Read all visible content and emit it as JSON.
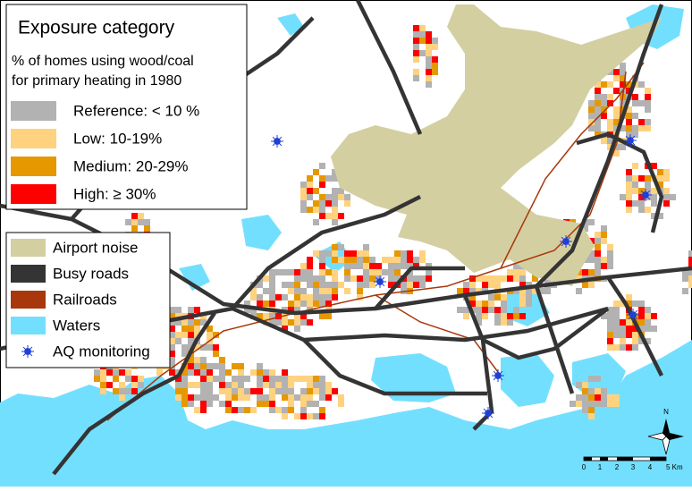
{
  "legend": {
    "title": "Exposure category",
    "subtitle": [
      "% of homes using wood/coal",
      "for primary heating in 1980"
    ],
    "categories": [
      {
        "label": "Reference: < 10 %",
        "color": "#b2b2b2"
      },
      {
        "label": "Low: 10-19%",
        "color": "#ffd27f"
      },
      {
        "label": "Medium: 20-29%",
        "color": "#e69800"
      },
      {
        "label": "High: ≥ 30%",
        "color": "#ff0000"
      }
    ]
  },
  "layers": [
    {
      "label": "Airport noise",
      "color": "#d3cfa1"
    },
    {
      "label": "Busy roads",
      "color": "#343434"
    },
    {
      "label": "Railroads",
      "color": "#a8380b"
    },
    {
      "label": "Waters",
      "color": "#73dfff"
    },
    {
      "label": "AQ monitoring",
      "color": "#1f3fd6"
    }
  ],
  "scale_bar": {
    "labels": [
      "0",
      "1",
      "2",
      "3",
      "4",
      "5 Km"
    ]
  },
  "north_label": "N"
}
